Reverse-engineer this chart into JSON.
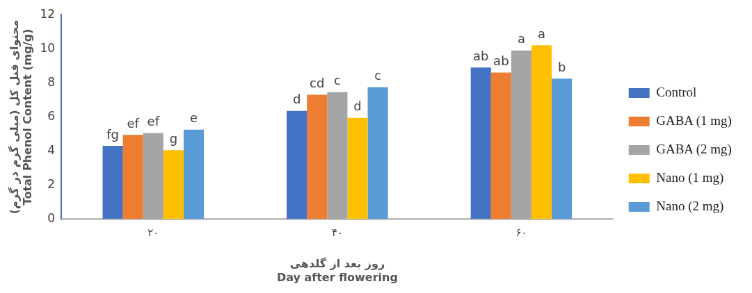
{
  "chart_data": {
    "type": "bar",
    "xlabel": "روز بعد از گلدهی\nDay after flowering",
    "ylabel": "محتوای فنل کل (میلی گرم در گرم)\nTotal Phenol Content (mg/g)",
    "categories": [
      "۲۰",
      "۴۰",
      "۶۰"
    ],
    "ylim": [
      0,
      12
    ],
    "yticks": [
      0,
      2,
      4,
      6,
      8,
      10,
      12
    ],
    "grid": false,
    "legend": "right",
    "series": [
      {
        "name": "Control",
        "color": "#4472c4",
        "values": [
          4.3,
          6.35,
          8.9
        ],
        "value_labels": [
          "fg",
          "d",
          "ab"
        ]
      },
      {
        "name": "GABA (1 mg)",
        "color": "#ed7d31",
        "values": [
          4.95,
          7.3,
          8.6
        ],
        "value_labels": [
          "ef",
          "cd",
          "ab"
        ]
      },
      {
        "name": "GABA (2 mg)",
        "color": "#a5a5a5",
        "values": [
          5.05,
          7.45,
          9.9
        ],
        "value_labels": [
          "ef",
          "c",
          "a"
        ]
      },
      {
        "name": "Nano (1 mg)",
        "color": "#ffc000",
        "values": [
          4.05,
          5.95,
          10.2
        ],
        "value_labels": [
          "g",
          "d",
          "a"
        ]
      },
      {
        "name": "Nano (2 mg)",
        "color": "#5b9bd5",
        "values": [
          5.25,
          7.75,
          8.25
        ],
        "value_labels": [
          "e",
          "c",
          "b"
        ]
      }
    ]
  }
}
